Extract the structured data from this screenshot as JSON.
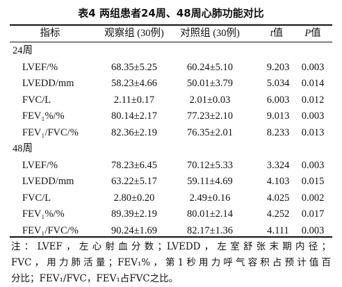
{
  "title": "表4 两组患者24周、48周心肺功能对比",
  "table": {
    "header": [
      {
        "text": "指标"
      },
      {
        "text": "观察组 (30例)"
      },
      {
        "text": "对照组 (30例)"
      },
      {
        "italic": "t",
        "text": "值"
      },
      {
        "italic": "P",
        "text": "值"
      }
    ],
    "sections": [
      {
        "label": "24周",
        "rows": [
          [
            "LVEF/%",
            "68.35±5.25",
            "60.24±5.10",
            "9.203",
            "0.003"
          ],
          [
            "LVEDD/mm",
            "58.23±4.66",
            "50.01±3.79",
            "5.034",
            "0.014"
          ],
          [
            "FVC/L",
            "2.11±0.17",
            "2.01±0.03",
            "6.003",
            "0.012"
          ],
          [
            "FEV₁%/%",
            "80.14±2.17",
            "77.23±2.10",
            "9.013",
            "0.003"
          ],
          [
            "FEV₁/FVC/%",
            "82.36±2.19",
            "76.35±2.01",
            "8.233",
            "0.013"
          ]
        ]
      },
      {
        "label": "48周",
        "rows": [
          [
            "LVEF/%",
            "78.23±6.45",
            "70.12±5.33",
            "3.324",
            "0.003"
          ],
          [
            "LVEDD/mm",
            "63.22±5.17",
            "59.11±4.69",
            "4.103",
            "0.015"
          ],
          [
            "FVC/L",
            "2.80±0.20",
            "2.49±0.16",
            "4.025",
            "0.002"
          ],
          [
            "FEV₁%/%",
            "89.39±2.19",
            "80.01±2.14",
            "4.252",
            "0.017"
          ],
          [
            "FEV₁/FVC/%",
            "90.24±1.69",
            "82.17±1.36",
            "4.111",
            "0.003"
          ]
        ]
      }
    ]
  },
  "note": [
    "注：LVEF，左心射血分数；LVEDD，左室舒张末期内径；",
    "FVC，用力肺活量；FEV₁%，第1秒用力呼气容积占预计值百",
    "分比；FEV₁/FVC，FEV₁占FVC之比。"
  ]
}
